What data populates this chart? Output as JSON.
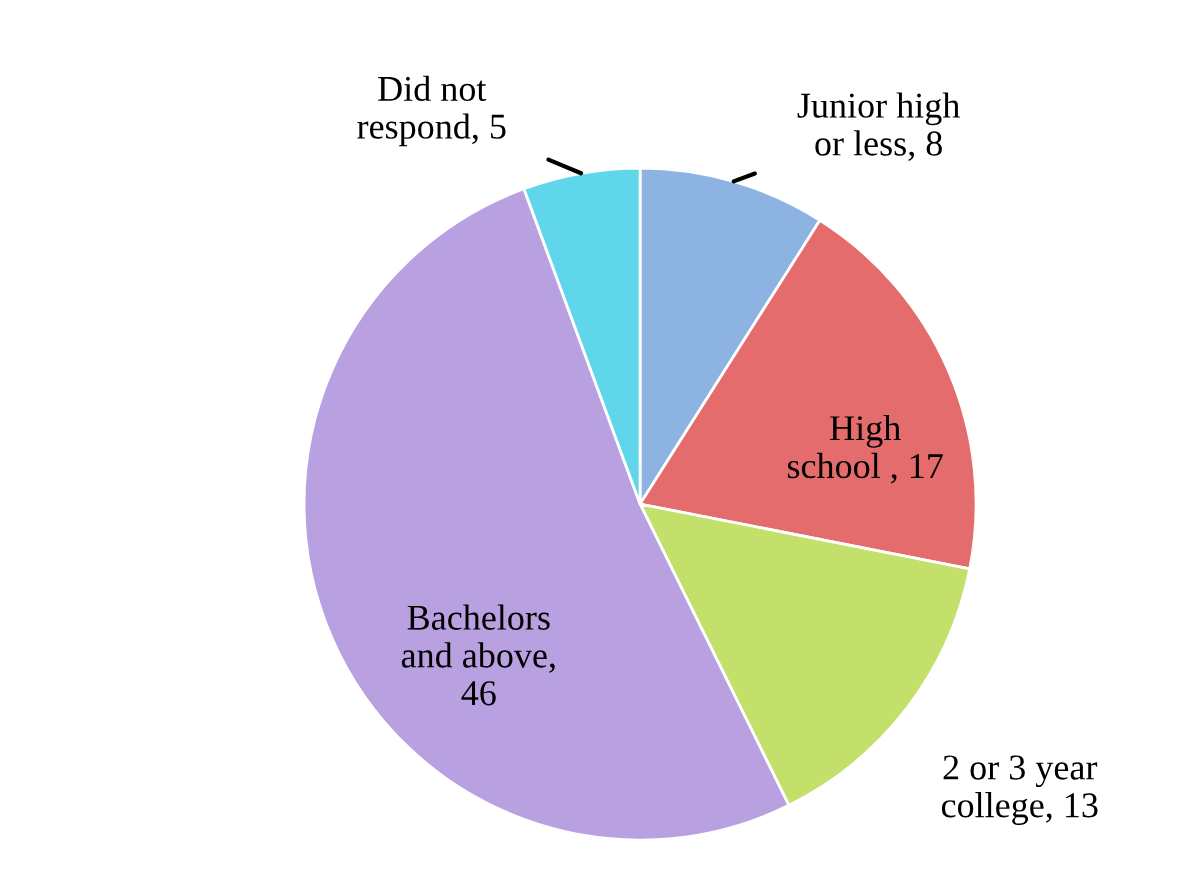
{
  "chart_data": {
    "type": "pie",
    "categories": [
      "Junior high\nor less, 8",
      "High\nschool , 17",
      "2 or 3 year\ncollege, 13",
      "Bachelors\nand above,\n46",
      "Did not\nrespond, 5"
    ],
    "values": [
      8,
      17,
      13,
      46,
      5
    ],
    "colors": [
      "#8db3e2",
      "#e46c6c",
      "#c3e06a",
      "#b9a0e0",
      "#5fd6ea"
    ],
    "legend": false
  }
}
